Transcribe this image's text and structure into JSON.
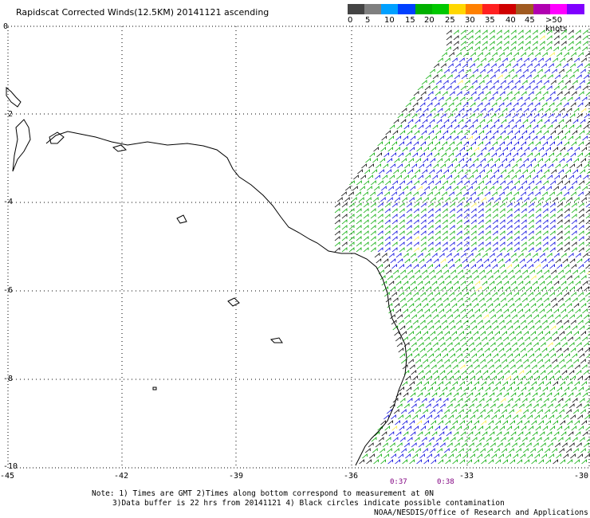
{
  "title": "Rapidscat Corrected Winds(12.5KM) 20141121 ascending",
  "legend": {
    "labels": [
      "0",
      "5",
      "10",
      "15",
      "20",
      "25",
      "30",
      "35",
      "40",
      "45",
      ">50 knots"
    ],
    "colors": [
      "#444444",
      "#7f7f7f",
      "#00a0ff",
      "#0040ff",
      "#00b000",
      "#00c800",
      "#ffd700",
      "#ff8000",
      "#ff2020",
      "#d00000",
      "#a05a20",
      "#b000b0",
      "#ff00ff",
      "#8000ff"
    ]
  },
  "axes": {
    "lat_labels": [
      "0",
      "-2",
      "-4",
      "-6",
      "-8",
      "-10"
    ],
    "lon_labels": [
      "-45",
      "-42",
      "-39",
      "-36",
      "-33",
      "-30"
    ]
  },
  "time_labels": [
    "0:37",
    "0:38"
  ],
  "notes": {
    "line1": "Note: 1) Times are GMT 2)Times along bottom correspond to measurement at 0N",
    "line2": "3)Data buffer is 22 hrs from 20141121 4) Black circles indicate possible contamination"
  },
  "credit": "NOAA/NESDIS/Office of Research and Applications",
  "wind_colors": {
    "light": "#000000",
    "moderate": "#0000dd",
    "fresh": "#00aa00",
    "strong": "#ffee44"
  }
}
